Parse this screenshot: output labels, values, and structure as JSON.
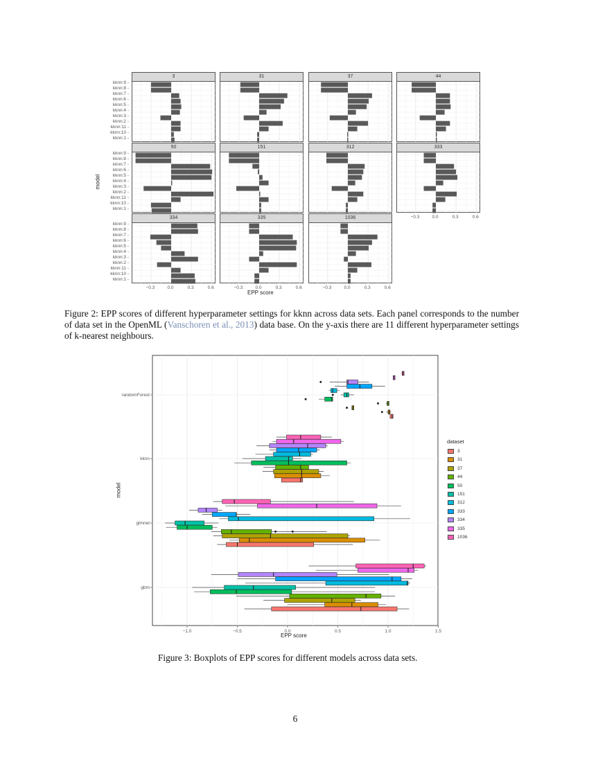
{
  "figure2": {
    "caption_prefix": "Figure 2: EPP scores of different hyperparameter settings for kknn across data sets. Each panel corresponds to the number of data set in the OpenML (",
    "caption_cite": "Vanschoren et al., 2013",
    "caption_suffix": ") data base. On the y-axis there are 11 different hyperparameter settings of k-nearest neighbours.",
    "xlabel": "EPP score",
    "ylabel": "model",
    "x_ticks": [
      "-0.3",
      "0.0",
      "0.3",
      "0.6"
    ]
  },
  "figure3": {
    "caption": "Figure 3: Boxplots of EPP scores for different models across data sets.",
    "xlabel": "EPP score",
    "ylabel": "model",
    "legend_title": "dataset"
  },
  "page_number": "6",
  "chart_data": [
    {
      "type": "bar",
      "orientation": "horizontal",
      "facets": true,
      "title": "",
      "xlabel": "EPP score",
      "ylabel": "model",
      "xlim": [
        -0.55,
        0.68
      ],
      "x_ticks": [
        -0.3,
        0.0,
        0.3,
        0.6
      ],
      "grid": true,
      "categories": [
        "kknn:9",
        "kknn:8",
        "kknn:7",
        "kknn:6",
        "kknn:5",
        "kknn:4",
        "kknn:3",
        "kknn:2",
        "kknn:11",
        "kknn:10",
        "kknn:1"
      ],
      "panels": [
        {
          "name": "3",
          "values": [
            -0.3,
            -0.3,
            0.12,
            0.14,
            0.15,
            0.13,
            -0.16,
            0.14,
            0.14,
            0.04,
            0.05
          ]
        },
        {
          "name": "31",
          "values": [
            -0.28,
            -0.28,
            0.42,
            0.37,
            0.32,
            0.11,
            -0.23,
            0.35,
            0.14,
            -0.03,
            -0.03
          ]
        },
        {
          "name": "37",
          "values": [
            -0.4,
            -0.4,
            0.36,
            0.31,
            0.28,
            0.12,
            -0.27,
            0.3,
            0.14,
            -0.01,
            -0.01
          ]
        },
        {
          "name": "44",
          "values": [
            -0.36,
            -0.36,
            0.21,
            0.21,
            0.22,
            0.13,
            -0.24,
            0.21,
            0.15,
            0.0,
            0.0
          ]
        },
        {
          "name": "50",
          "values": [
            -0.53,
            -0.53,
            0.58,
            0.61,
            0.6,
            0.01,
            -0.41,
            0.63,
            0.14,
            -0.3,
            -0.29
          ]
        },
        {
          "name": "151",
          "values": [
            -0.45,
            -0.45,
            -0.1,
            -0.02,
            0.05,
            0.14,
            -0.34,
            0.01,
            0.14,
            0.03,
            0.03
          ]
        },
        {
          "name": "312",
          "values": [
            -0.32,
            -0.32,
            0.25,
            0.23,
            0.21,
            0.11,
            -0.24,
            0.23,
            0.14,
            -0.03,
            -0.03
          ]
        },
        {
          "name": "333",
          "values": [
            -0.18,
            -0.18,
            0.27,
            0.3,
            0.32,
            0.11,
            -0.18,
            0.31,
            0.14,
            -0.05,
            -0.05
          ]
        },
        {
          "name": "334",
          "values": [
            0.39,
            0.4,
            -0.31,
            -0.22,
            -0.15,
            0.2,
            0.4,
            -0.21,
            0.14,
            0.35,
            0.36
          ]
        },
        {
          "name": "335",
          "values": [
            -0.15,
            -0.15,
            0.5,
            0.56,
            0.55,
            0.06,
            -0.15,
            0.56,
            0.14,
            -0.07,
            -0.07
          ]
        },
        {
          "name": "1036",
          "values": [
            -0.11,
            -0.11,
            0.44,
            0.36,
            0.31,
            0.12,
            -0.06,
            0.35,
            0.14,
            0.04,
            0.04
          ]
        }
      ]
    },
    {
      "type": "box",
      "orientation": "horizontal",
      "title": "",
      "xlabel": "EPP score",
      "ylabel": "model",
      "xlim": [
        -1.35,
        1.5
      ],
      "x_ticks": [
        -1.0,
        -0.5,
        0.0,
        0.5,
        1.0,
        1.5
      ],
      "categories": [
        "randomForest",
        "kknn",
        "glmnet",
        "gbm"
      ],
      "legend_title": "dataset",
      "legend_position": "right",
      "series": [
        {
          "name": "3",
          "color": "#F8766D"
        },
        {
          "name": "31",
          "color": "#DB8E00"
        },
        {
          "name": "37",
          "color": "#AEA200"
        },
        {
          "name": "44",
          "color": "#64B200"
        },
        {
          "name": "50",
          "color": "#00BD5C"
        },
        {
          "name": "151",
          "color": "#00C1A7"
        },
        {
          "name": "312",
          "color": "#00BADE"
        },
        {
          "name": "333",
          "color": "#00A6FF"
        },
        {
          "name": "334",
          "color": "#B385FF"
        },
        {
          "name": "335",
          "color": "#EF67EB"
        },
        {
          "name": "1036",
          "color": "#FF63B6"
        }
      ],
      "boxes": {
        "randomForest": [
          {
            "dataset": "3",
            "wlo": 1.02,
            "q1": 1.02,
            "med": 1.04,
            "q3": 1.05,
            "whi": 1.05
          },
          {
            "dataset": "31",
            "wlo": 0.98,
            "q1": 1.0,
            "med": 1.01,
            "q3": 1.02,
            "whi": 1.03,
            "outliers": [
              0.94
            ]
          },
          {
            "dataset": "37",
            "wlo": 0.65,
            "q1": 0.64,
            "med": 0.65,
            "q3": 0.66,
            "whi": 0.66,
            "outliers": [
              0.59
            ]
          },
          {
            "dataset": "44",
            "wlo": 0.98,
            "q1": 0.99,
            "med": 1.0,
            "q3": 1.01,
            "whi": 1.01,
            "outliers": [
              0.9
            ]
          },
          {
            "dataset": "50",
            "wlo": 0.31,
            "q1": 0.37,
            "med": 0.44,
            "q3": 0.45,
            "whi": 0.45,
            "outliers": [
              0.18
            ]
          },
          {
            "dataset": "151",
            "wlo": 0.53,
            "q1": 0.56,
            "med": 0.59,
            "q3": 0.61,
            "whi": 0.66,
            "outliers": [
              0.45
            ]
          },
          {
            "dataset": "312",
            "wlo": 0.41,
            "q1": 0.43,
            "med": 0.45,
            "q3": 0.49,
            "whi": 0.52
          },
          {
            "dataset": "333",
            "wlo": 0.47,
            "q1": 0.59,
            "med": 0.72,
            "q3": 0.84,
            "whi": 0.97
          },
          {
            "dataset": "334",
            "wlo": 0.42,
            "q1": 0.59,
            "med": 0.6,
            "q3": 0.7,
            "whi": 0.81,
            "outliers": [
              0.33
            ]
          },
          {
            "dataset": "335",
            "wlo": 1.05,
            "q1": 1.05,
            "med": 1.06,
            "q3": 1.07,
            "whi": 1.07
          },
          {
            "dataset": "1036",
            "wlo": 1.13,
            "q1": 1.14,
            "med": 1.15,
            "q3": 1.16,
            "whi": 1.16
          }
        ],
        "kknn": [
          {
            "dataset": "3",
            "wlo": -0.03,
            "q1": -0.06,
            "med": 0.13,
            "q3": 0.15,
            "whi": 0.15
          },
          {
            "dataset": "31",
            "wlo": -0.13,
            "q1": -0.13,
            "med": 0.14,
            "q3": 0.33,
            "whi": 0.42
          },
          {
            "dataset": "37",
            "wlo": -0.25,
            "q1": -0.14,
            "med": 0.14,
            "q3": 0.31,
            "whi": 0.36
          },
          {
            "dataset": "44",
            "wlo": -0.24,
            "q1": -0.12,
            "med": 0.13,
            "q3": 0.21,
            "whi": 0.21
          },
          {
            "dataset": "50",
            "wlo": -0.53,
            "q1": -0.36,
            "med": 0.01,
            "q3": 0.59,
            "whi": 0.63
          },
          {
            "dataset": "151",
            "wlo": -0.45,
            "q1": -0.22,
            "med": 0.01,
            "q3": 0.05,
            "whi": 0.14
          },
          {
            "dataset": "312",
            "wlo": -0.32,
            "q1": -0.14,
            "med": 0.12,
            "q3": 0.23,
            "whi": 0.25
          },
          {
            "dataset": "333",
            "wlo": -0.18,
            "q1": -0.11,
            "med": 0.11,
            "q3": 0.29,
            "whi": 0.32
          },
          {
            "dataset": "334",
            "wlo": -0.31,
            "q1": -0.18,
            "med": 0.2,
            "q3": 0.38,
            "whi": 0.4
          },
          {
            "dataset": "335",
            "wlo": -0.15,
            "q1": -0.11,
            "med": 0.06,
            "q3": 0.53,
            "whi": 0.56
          },
          {
            "dataset": "1036",
            "wlo": -0.11,
            "q1": -0.01,
            "med": 0.13,
            "q3": 0.33,
            "whi": 0.44
          }
        ],
        "glmnet": [
          {
            "dataset": "3",
            "wlo": -0.7,
            "q1": -0.61,
            "med": -0.5,
            "q3": 0.26,
            "whi": 0.65
          },
          {
            "dataset": "31",
            "wlo": -0.58,
            "q1": -0.48,
            "med": -0.38,
            "q3": 0.77,
            "whi": 0.92
          },
          {
            "dataset": "37",
            "wlo": -0.74,
            "q1": -0.65,
            "med": -0.17,
            "q3": 0.6,
            "whi": 0.62
          },
          {
            "dataset": "44",
            "wlo": -0.76,
            "q1": -0.66,
            "med": -0.56,
            "q3": -0.16,
            "whi": 0.39,
            "outliers": [
              -0.12,
              0.05
            ]
          },
          {
            "dataset": "50",
            "wlo": -1.21,
            "q1": -1.1,
            "med": -1.0,
            "q3": -0.75,
            "whi": -0.7
          },
          {
            "dataset": "151",
            "wlo": -1.22,
            "q1": -1.12,
            "med": -1.02,
            "q3": -0.83,
            "whi": -0.69
          },
          {
            "dataset": "312",
            "wlo": -0.68,
            "q1": -0.59,
            "med": -0.49,
            "q3": 0.86,
            "whi": 1.22
          },
          {
            "dataset": "333",
            "wlo": -0.85,
            "q1": -0.75,
            "med": -0.51,
            "q3": -0.51,
            "whi": -0.37
          },
          {
            "dataset": "334",
            "wlo": -0.98,
            "q1": -0.89,
            "med": -0.81,
            "q3": -0.7,
            "whi": -0.65
          },
          {
            "dataset": "335",
            "wlo": -0.62,
            "q1": -0.3,
            "med": 0.29,
            "q3": 0.89,
            "whi": 1.13
          },
          {
            "dataset": "1036",
            "wlo": -0.74,
            "q1": -0.65,
            "med": -0.53,
            "q3": -0.17,
            "whi": 0.66
          }
        ],
        "gbm": [
          {
            "dataset": "3",
            "wlo": -0.43,
            "q1": -0.16,
            "med": 0.73,
            "q3": 1.09,
            "whi": 1.21
          },
          {
            "dataset": "31",
            "wlo": 0.0,
            "q1": 0.37,
            "med": 0.64,
            "q3": 0.9,
            "whi": 0.98
          },
          {
            "dataset": "37",
            "wlo": -0.24,
            "q1": -0.03,
            "med": 0.44,
            "q3": 0.67,
            "whi": 0.73
          },
          {
            "dataset": "44",
            "wlo": -0.51,
            "q1": 0.02,
            "med": 0.78,
            "q3": 0.93,
            "whi": 1.07
          },
          {
            "dataset": "50",
            "wlo": -0.93,
            "q1": -0.77,
            "med": -0.51,
            "q3": 0.04,
            "whi": 0.87
          },
          {
            "dataset": "151",
            "wlo": -0.95,
            "q1": -0.63,
            "med": -0.34,
            "q3": 0.08,
            "whi": 0.87
          },
          {
            "dataset": "312",
            "wlo": -0.42,
            "q1": 0.38,
            "med": 1.19,
            "q3": 1.2,
            "whi": 1.22
          },
          {
            "dataset": "333",
            "wlo": -0.5,
            "q1": -0.12,
            "med": 1.04,
            "q3": 1.13,
            "whi": 1.24
          },
          {
            "dataset": "334",
            "wlo": -0.76,
            "q1": -0.49,
            "med": -0.14,
            "q3": 0.49,
            "whi": 1.01
          },
          {
            "dataset": "335",
            "wlo": 0.28,
            "q1": 0.7,
            "med": 1.2,
            "q3": 1.26,
            "whi": 1.3
          },
          {
            "dataset": "1036",
            "wlo": 0.21,
            "q1": 0.68,
            "med": 1.25,
            "q3": 1.36,
            "whi": 1.38
          }
        ]
      }
    }
  ]
}
